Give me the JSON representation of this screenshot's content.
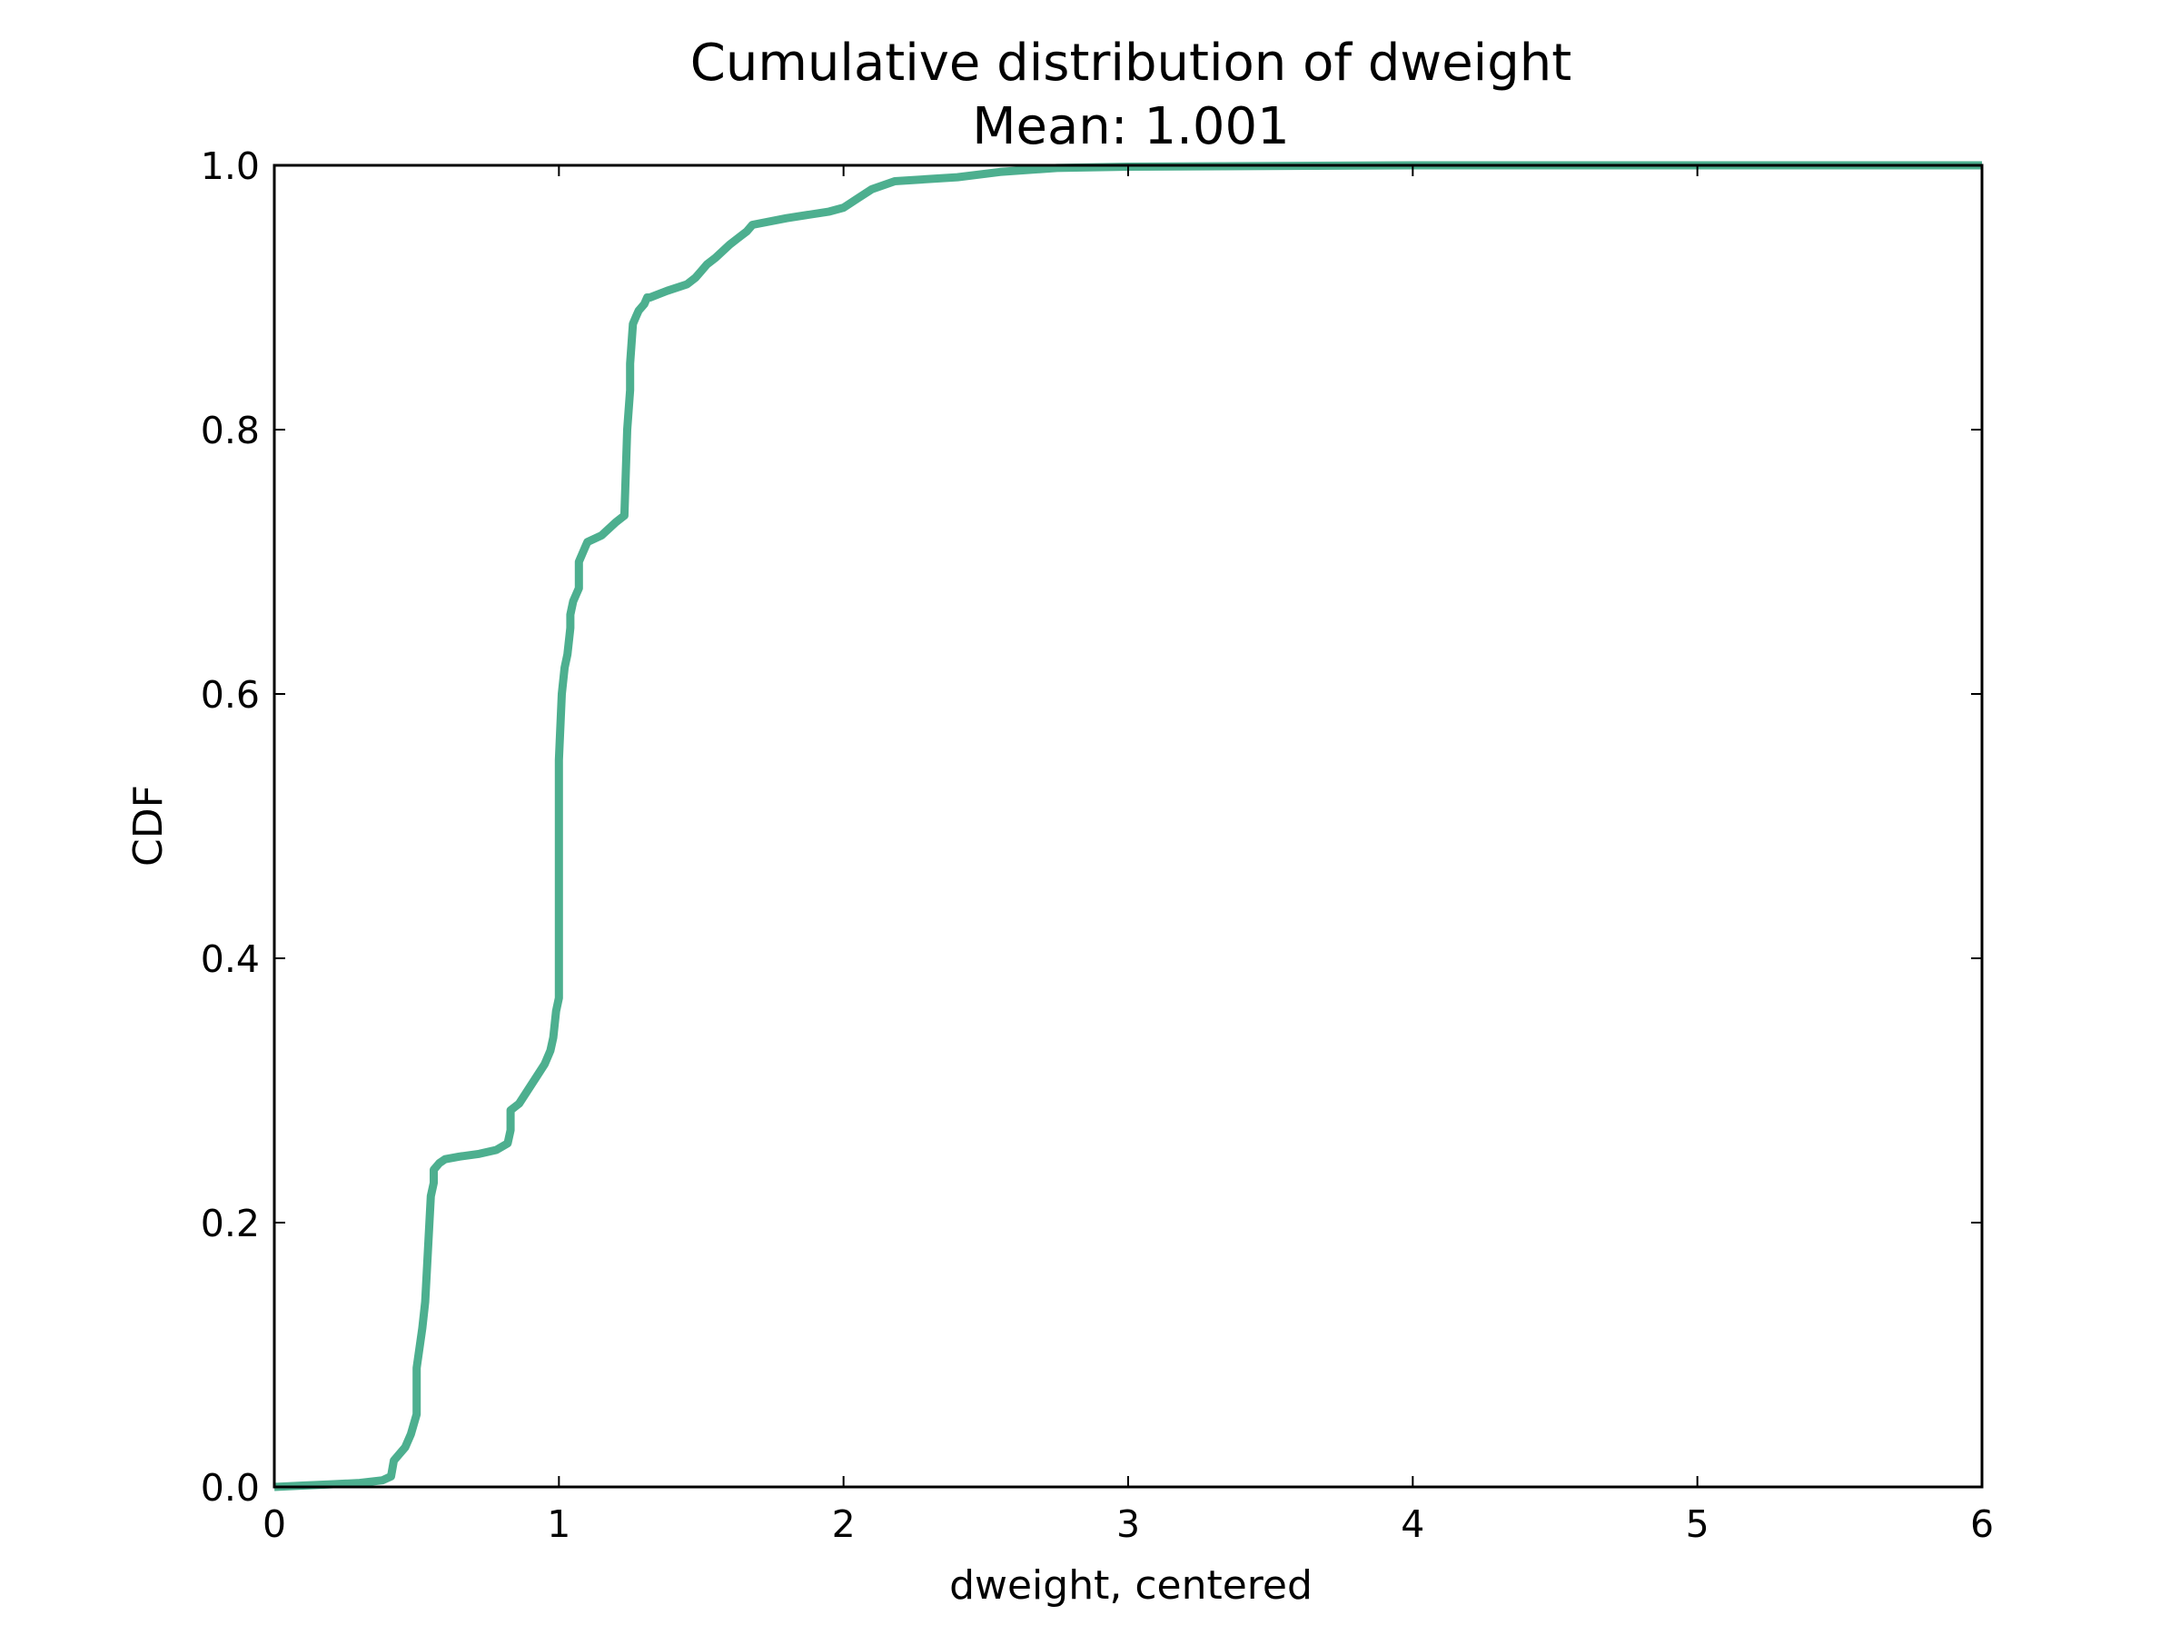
{
  "chart_data": {
    "type": "line",
    "title": "Cumulative distribution of dweight",
    "subtitle": "Mean: 1.001",
    "xlabel": "dweight, centered",
    "ylabel": "CDF",
    "xlim": [
      0,
      6
    ],
    "ylim": [
      0,
      1
    ],
    "xticks": [
      "0",
      "1",
      "2",
      "3",
      "4",
      "5",
      "6"
    ],
    "yticks": [
      "0.0",
      "0.2",
      "0.4",
      "0.6",
      "0.8",
      "1.0"
    ],
    "grid": false,
    "line_color": "#4daf8f",
    "series": [
      {
        "x": [
          0.0,
          0.1,
          0.2,
          0.3,
          0.38,
          0.41,
          0.42,
          0.44,
          0.46,
          0.48,
          0.5,
          0.5,
          0.52,
          0.53,
          0.54,
          0.55,
          0.56,
          0.56,
          0.58,
          0.58,
          0.6,
          0.65,
          0.72,
          0.78,
          0.82,
          0.83,
          0.83,
          0.86,
          0.89,
          0.92,
          0.95,
          0.97,
          0.98,
          0.99,
          1.0,
          1.0,
          1.0,
          1.01,
          1.02,
          1.03,
          1.04,
          1.04,
          1.05,
          1.07,
          1.07,
          1.08,
          1.09,
          1.1,
          1.15,
          1.2,
          1.23,
          1.24,
          1.25,
          1.25,
          1.26,
          1.27,
          1.28,
          1.3,
          1.31,
          1.32,
          1.38,
          1.45,
          1.48,
          1.5,
          1.52,
          1.55,
          1.6,
          1.63,
          1.66,
          1.68,
          1.8,
          1.95,
          2.0,
          2.05,
          2.1,
          2.18,
          2.4,
          2.55,
          2.75,
          3.0,
          4.0,
          5.0,
          6.0
        ],
        "y": [
          0.0,
          0.001,
          0.002,
          0.003,
          0.005,
          0.008,
          0.02,
          0.025,
          0.03,
          0.04,
          0.055,
          0.09,
          0.12,
          0.14,
          0.18,
          0.22,
          0.23,
          0.24,
          0.245,
          0.245,
          0.248,
          0.25,
          0.252,
          0.255,
          0.26,
          0.27,
          0.285,
          0.29,
          0.3,
          0.31,
          0.32,
          0.33,
          0.34,
          0.36,
          0.37,
          0.5,
          0.55,
          0.6,
          0.62,
          0.63,
          0.65,
          0.66,
          0.67,
          0.68,
          0.7,
          0.705,
          0.71,
          0.715,
          0.72,
          0.73,
          0.735,
          0.8,
          0.83,
          0.85,
          0.88,
          0.885,
          0.89,
          0.895,
          0.9,
          0.9,
          0.905,
          0.91,
          0.915,
          0.92,
          0.925,
          0.93,
          0.94,
          0.945,
          0.95,
          0.955,
          0.96,
          0.965,
          0.968,
          0.975,
          0.982,
          0.988,
          0.991,
          0.995,
          0.998,
          0.999,
          1.0,
          1.0,
          1.0
        ]
      }
    ]
  }
}
